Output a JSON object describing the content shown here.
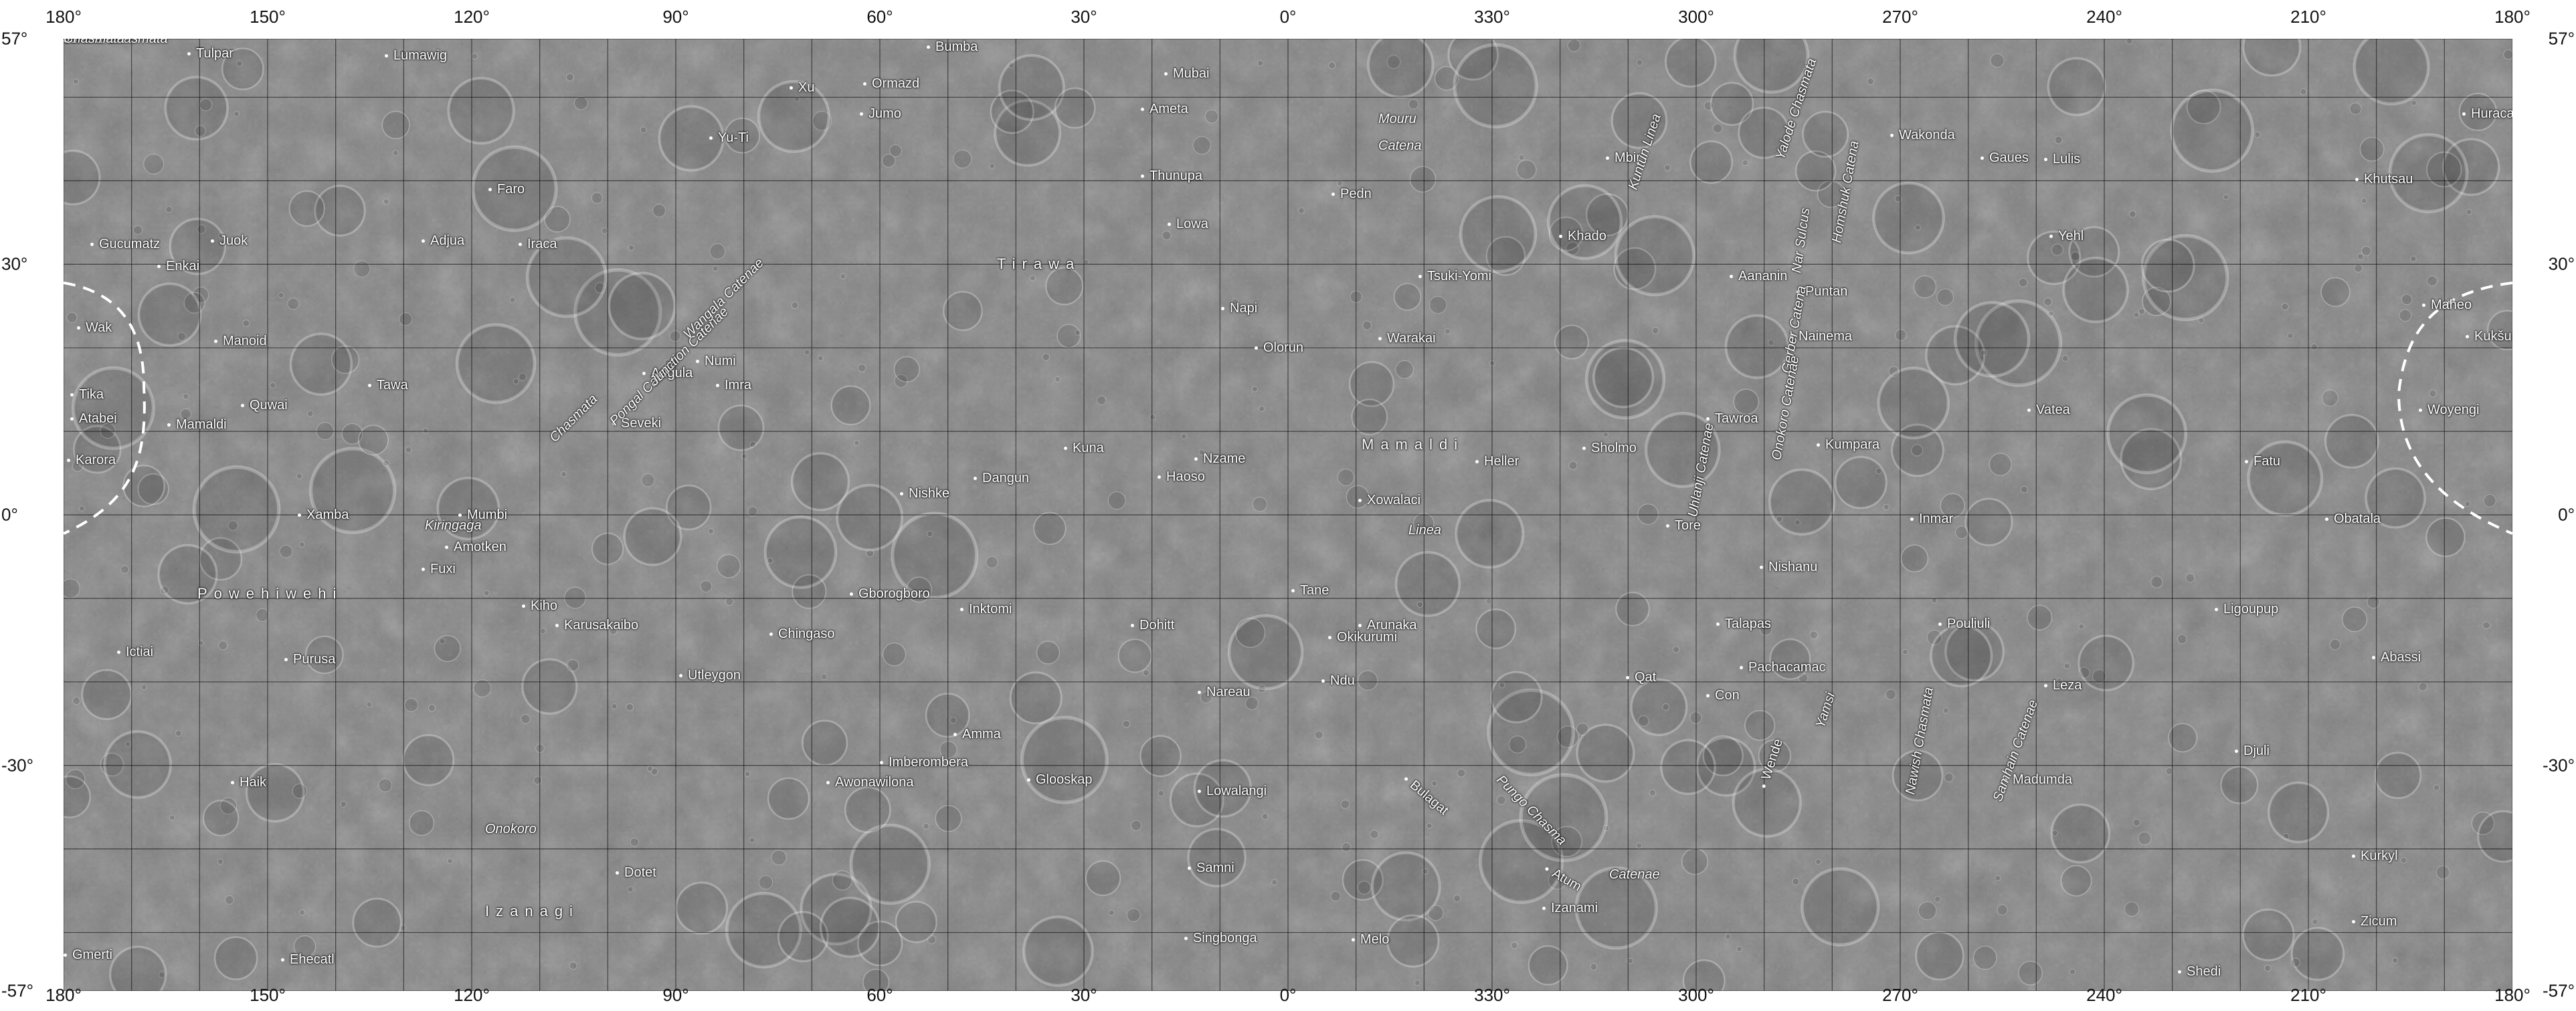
{
  "map": {
    "top_longitudes": [
      "180°",
      "150°",
      "120°",
      "90°",
      "60°",
      "30°",
      "0°",
      "330°",
      "300°",
      "270°",
      "240°",
      "210°",
      "180°"
    ],
    "bottom_longitudes": [
      "180°",
      "150°",
      "120°",
      "90°",
      "60°",
      "30°",
      "0°",
      "330°",
      "300°",
      "270°",
      "240°",
      "210°",
      "180°"
    ],
    "left_latitudes": [
      "57°",
      "30°",
      "0°",
      "-30°",
      "-57°"
    ],
    "right_latitudes": [
      "57°",
      "30°",
      "0°",
      "-30°",
      "-57°"
    ],
    "features": [
      {
        "name": "Tulpar",
        "kind": "crater"
      },
      {
        "name": "Lumawig",
        "kind": "crater"
      },
      {
        "name": "Bumba",
        "kind": "crater"
      },
      {
        "name": "Mubai",
        "kind": "crater"
      },
      {
        "name": "Xu",
        "kind": "crater"
      },
      {
        "name": "Ormazd",
        "kind": "crater"
      },
      {
        "name": "Jumo",
        "kind": "crater"
      },
      {
        "name": "Ameta",
        "kind": "crater"
      },
      {
        "name": "Mouru",
        "kind": "feature"
      },
      {
        "name": "Catena",
        "kind": "feature"
      },
      {
        "name": "Huracan",
        "kind": "crater"
      },
      {
        "name": "Wakonda",
        "kind": "crater"
      },
      {
        "name": "Mbir",
        "kind": "crater"
      },
      {
        "name": "Kuntun Linea",
        "kind": "feature"
      },
      {
        "name": "Gaues",
        "kind": "crater"
      },
      {
        "name": "Yu-Ti",
        "kind": "crater"
      },
      {
        "name": "Faro",
        "kind": "crater"
      },
      {
        "name": "Thunupa",
        "kind": "crater"
      },
      {
        "name": "Pedn",
        "kind": "crater"
      },
      {
        "name": "Lulis",
        "kind": "crater"
      },
      {
        "name": "Khutsau",
        "kind": "crater"
      },
      {
        "name": "Gucumatz",
        "kind": "crater"
      },
      {
        "name": "Juok",
        "kind": "crater"
      },
      {
        "name": "Adjua",
        "kind": "crater"
      },
      {
        "name": "Iraca",
        "kind": "crater"
      },
      {
        "name": "Lowa",
        "kind": "crater"
      },
      {
        "name": "Khado",
        "kind": "crater"
      },
      {
        "name": "Yehl",
        "kind": "crater"
      },
      {
        "name": "Enkai",
        "kind": "crater"
      },
      {
        "name": "Tirawa",
        "kind": "region"
      },
      {
        "name": "Tsuki-Yomi",
        "kind": "crater"
      },
      {
        "name": "Aananin",
        "kind": "crater"
      },
      {
        "name": "Puntan",
        "kind": "crater"
      },
      {
        "name": "Maheo",
        "kind": "crater"
      },
      {
        "name": "Wak",
        "kind": "crater"
      },
      {
        "name": "Napi",
        "kind": "crater"
      },
      {
        "name": "Manoid",
        "kind": "crater"
      },
      {
        "name": "Olorun",
        "kind": "crater"
      },
      {
        "name": "Warakai",
        "kind": "crater"
      },
      {
        "name": "Nainema",
        "kind": "crater"
      },
      {
        "name": "Kukšu",
        "kind": "crater"
      },
      {
        "name": "Angula",
        "kind": "crater"
      },
      {
        "name": "Numi",
        "kind": "crater"
      },
      {
        "name": "Tika",
        "kind": "crater"
      },
      {
        "name": "Tawa",
        "kind": "crater"
      },
      {
        "name": "Imra",
        "kind": "crater"
      },
      {
        "name": "Quwai",
        "kind": "crater"
      },
      {
        "name": "Vatea",
        "kind": "crater"
      },
      {
        "name": "Atabei",
        "kind": "crater"
      },
      {
        "name": "Mamaldi",
        "kind": "crater"
      },
      {
        "name": "Seveki",
        "kind": "crater"
      },
      {
        "name": "Tawroa",
        "kind": "crater"
      },
      {
        "name": "Woyengi",
        "kind": "crater"
      },
      {
        "name": "Mamaldi",
        "kind": "region"
      },
      {
        "name": "Sholmo",
        "kind": "crater"
      },
      {
        "name": "Heller",
        "kind": "crater"
      },
      {
        "name": "Kumpara",
        "kind": "crater"
      },
      {
        "name": "Kuna",
        "kind": "crater"
      },
      {
        "name": "Nzame",
        "kind": "crater"
      },
      {
        "name": "Haoso",
        "kind": "crater"
      },
      {
        "name": "Karora",
        "kind": "crater"
      },
      {
        "name": "Fatu",
        "kind": "crater"
      },
      {
        "name": "Dangun",
        "kind": "crater"
      },
      {
        "name": "Nishke",
        "kind": "crater"
      },
      {
        "name": "Xowalaci",
        "kind": "crater"
      },
      {
        "name": "Xamba",
        "kind": "crater"
      },
      {
        "name": "Kiringaga",
        "kind": "feature"
      },
      {
        "name": "Mumbi",
        "kind": "crater"
      },
      {
        "name": "Linea",
        "kind": "feature"
      },
      {
        "name": "Tore",
        "kind": "crater"
      },
      {
        "name": "Inmar",
        "kind": "crater"
      },
      {
        "name": "Obatala",
        "kind": "crater"
      },
      {
        "name": "Amotken",
        "kind": "crater"
      },
      {
        "name": "Fuxi",
        "kind": "crater"
      },
      {
        "name": "Nishanu",
        "kind": "crater"
      },
      {
        "name": "Powehiwehi",
        "kind": "region"
      },
      {
        "name": "Gborogboro",
        "kind": "crater"
      },
      {
        "name": "Tane",
        "kind": "crater"
      },
      {
        "name": "Kiho",
        "kind": "crater"
      },
      {
        "name": "Inktomi",
        "kind": "crater"
      },
      {
        "name": "Ligoupup",
        "kind": "crater"
      },
      {
        "name": "Karusakaibo",
        "kind": "crater"
      },
      {
        "name": "Chingaso",
        "kind": "crater"
      },
      {
        "name": "Dohitt",
        "kind": "crater"
      },
      {
        "name": "Arunaka",
        "kind": "crater"
      },
      {
        "name": "Talapas",
        "kind": "crater"
      },
      {
        "name": "Pouliuli",
        "kind": "crater"
      },
      {
        "name": "Okikurumi",
        "kind": "crater"
      },
      {
        "name": "Ictiai",
        "kind": "crater"
      },
      {
        "name": "Purusa",
        "kind": "crater"
      },
      {
        "name": "Abassi",
        "kind": "crater"
      },
      {
        "name": "Utleygon",
        "kind": "crater"
      },
      {
        "name": "Pachacamac",
        "kind": "crater"
      },
      {
        "name": "Ndu",
        "kind": "crater"
      },
      {
        "name": "Qat",
        "kind": "crater"
      },
      {
        "name": "Leza",
        "kind": "crater"
      },
      {
        "name": "Nareau",
        "kind": "crater"
      },
      {
        "name": "Con",
        "kind": "crater"
      },
      {
        "name": "Amma",
        "kind": "crater"
      },
      {
        "name": "Djuli",
        "kind": "crater"
      },
      {
        "name": "Imberombera",
        "kind": "crater"
      },
      {
        "name": "Glooskap",
        "kind": "crater"
      },
      {
        "name": "Haik",
        "kind": "crater"
      },
      {
        "name": "Awonawilona",
        "kind": "crater"
      },
      {
        "name": "Madumda",
        "kind": "crater"
      },
      {
        "name": "Lowalangi",
        "kind": "crater"
      },
      {
        "name": "Bulagat",
        "kind": "crater"
      },
      {
        "name": "Onokoro",
        "kind": "feature"
      },
      {
        "name": "Kurkyl",
        "kind": "crater"
      },
      {
        "name": "Dotet",
        "kind": "crater"
      },
      {
        "name": "Samni",
        "kind": "crater"
      },
      {
        "name": "Atum",
        "kind": "crater"
      },
      {
        "name": "Catenae",
        "kind": "feature"
      },
      {
        "name": "Izanami",
        "kind": "crater"
      },
      {
        "name": "Izanagi",
        "kind": "region"
      },
      {
        "name": "Zicum",
        "kind": "crater"
      },
      {
        "name": "Gmerti",
        "kind": "crater"
      },
      {
        "name": "Ehecatl",
        "kind": "crater"
      },
      {
        "name": "Singbonga",
        "kind": "crater"
      },
      {
        "name": "Melo",
        "kind": "crater"
      },
      {
        "name": "Shedi",
        "kind": "crater"
      },
      {
        "name": "Wende",
        "kind": "crater"
      },
      {
        "name": "Yamsi",
        "kind": "feature"
      },
      {
        "name": "Chasmata",
        "kind": "feature"
      },
      {
        "name": "Pongal Catena",
        "kind": "feature"
      },
      {
        "name": "Junction Catenae",
        "kind": "feature"
      },
      {
        "name": "Wangala Catenae",
        "kind": "feature"
      },
      {
        "name": "Uhlanji Catenae",
        "kind": "feature"
      },
      {
        "name": "Gerber Catena",
        "kind": "feature"
      },
      {
        "name": "Homshuk Catena",
        "kind": "feature"
      },
      {
        "name": "Nawish Chasmata",
        "kind": "feature"
      },
      {
        "name": "Samhain Catenae",
        "kind": "feature"
      },
      {
        "name": "Pungo Chasma",
        "kind": "feature"
      },
      {
        "name": "Yalode Chasmata",
        "kind": "feature"
      },
      {
        "name": "Onokoro Catenae",
        "kind": "feature"
      },
      {
        "name": "Nar Sulcus",
        "kind": "feature"
      },
      {
        "name": "Junina Chasmata",
        "kind": "feature"
      },
      {
        "name": "Chasmata",
        "kind": "feature"
      }
    ]
  }
}
